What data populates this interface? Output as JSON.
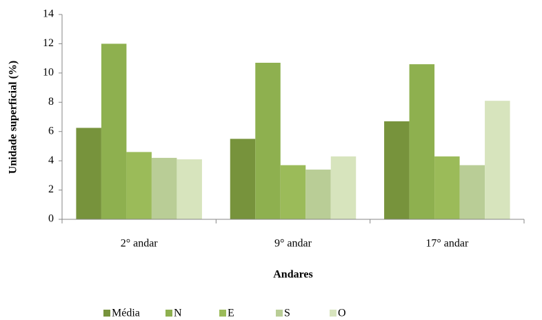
{
  "chart_data": {
    "type": "bar",
    "x_label": "Andares",
    "y_label": "Unidade superficial (%)",
    "categories": [
      "2° andar",
      "9° andar",
      "17° andar"
    ],
    "series": [
      {
        "name": "Média",
        "color": "#77933c",
        "values": [
          6.25,
          5.5,
          6.7
        ]
      },
      {
        "name": "N",
        "color": "#8eb04f",
        "values": [
          12,
          10.7,
          10.6
        ]
      },
      {
        "name": "E",
        "color": "#9bbb59",
        "values": [
          4.6,
          3.7,
          4.3
        ]
      },
      {
        "name": "S",
        "color": "#b9cd96",
        "values": [
          4.2,
          3.4,
          3.7
        ]
      },
      {
        "name": "O",
        "color": "#d7e4bd",
        "values": [
          4.1,
          4.3,
          8.1
        ]
      }
    ],
    "ylim": [
      0,
      14
    ],
    "yticks": [
      0,
      2,
      4,
      6,
      8,
      10,
      12,
      14
    ],
    "grid": false,
    "legend": "bottom"
  }
}
